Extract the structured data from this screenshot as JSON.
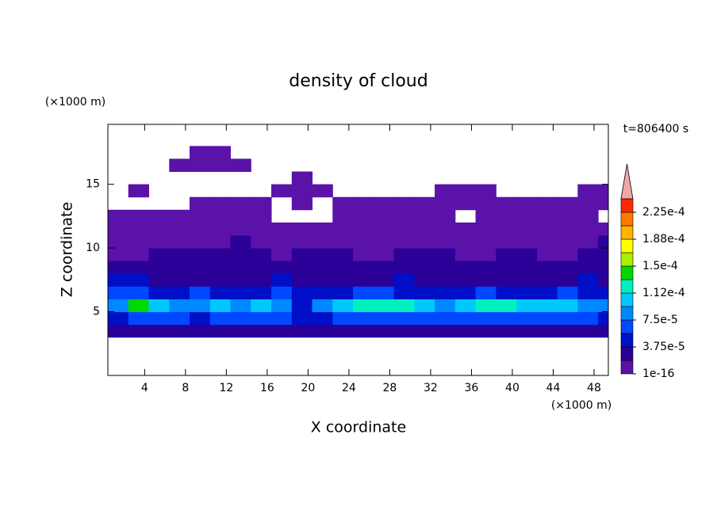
{
  "chart_data": {
    "type": "contour",
    "title": "density of cloud",
    "x_label": "X coordinate",
    "y_label": "Z coordinate",
    "x_unit": "(×1000 m)",
    "y_unit": "(×1000 m)",
    "time_label": "t=806400 s",
    "xlim": [
      0.4,
      49.4
    ],
    "ylim": [
      0,
      19.7
    ],
    "xticks": [
      4,
      8,
      12,
      16,
      20,
      24,
      28,
      32,
      36,
      40,
      44,
      48
    ],
    "yticks": [
      5,
      10,
      15
    ],
    "x": [
      1.4,
      3.4,
      5.4,
      7.4,
      9.4,
      11.4,
      13.4,
      15.4,
      17.4,
      19.4,
      21.4,
      23.4,
      25.4,
      27.4,
      29.4,
      31.4,
      33.4,
      35.4,
      37.4,
      39.4,
      41.4,
      43.4,
      45.4,
      47.4,
      49.4
    ],
    "y": [
      3.5,
      4.5,
      5.5,
      6.5,
      7.5,
      8.5,
      9.5,
      10.5,
      11.5,
      12.5,
      13.5,
      14.5,
      15.5,
      16.5,
      17.5
    ],
    "z": [
      [
        2.8e-05,
        2.8e-05,
        2.8e-05,
        2.8e-05,
        2.8e-05,
        2.8e-05,
        2.8e-05,
        2.8e-05,
        2.8e-05,
        2.8e-05,
        2.8e-05,
        2.8e-05,
        2.8e-05,
        2.8e-05,
        2.8e-05,
        2.8e-05,
        2.8e-05,
        2.8e-05,
        2.8e-05,
        2.8e-05,
        2.8e-05,
        2.8e-05,
        2.8e-05,
        2.8e-05,
        2.8e-05
      ],
      [
        4.5e-05,
        6.5e-05,
        6.5e-05,
        6.5e-05,
        4.5e-05,
        6.5e-05,
        6.5e-05,
        6.5e-05,
        6.5e-05,
        4.5e-05,
        4.5e-05,
        6.5e-05,
        6.5e-05,
        6.5e-05,
        6.5e-05,
        6.5e-05,
        6.5e-05,
        6.5e-05,
        6.5e-05,
        6.5e-05,
        6.5e-05,
        6.5e-05,
        6.5e-05,
        6.5e-05,
        4.5e-05
      ],
      [
        8.5e-05,
        0.00014,
        0.000105,
        8.5e-05,
        8.5e-05,
        0.000105,
        8.5e-05,
        0.000105,
        8.5e-05,
        4.5e-05,
        8.5e-05,
        0.000105,
        0.00012,
        0.00012,
        0.00012,
        0.000105,
        8.5e-05,
        0.000105,
        0.00012,
        0.00012,
        0.000105,
        0.000105,
        0.000105,
        8.5e-05,
        8.5e-05
      ],
      [
        6.5e-05,
        6.5e-05,
        4.5e-05,
        4.5e-05,
        6.5e-05,
        4.5e-05,
        4.5e-05,
        4.5e-05,
        6.5e-05,
        4.5e-05,
        4.5e-05,
        4.5e-05,
        6.5e-05,
        6.5e-05,
        4.5e-05,
        4.5e-05,
        4.5e-05,
        4.5e-05,
        6.5e-05,
        4.5e-05,
        4.5e-05,
        4.5e-05,
        6.5e-05,
        4.5e-05,
        4.5e-05
      ],
      [
        4.5e-05,
        4.5e-05,
        2.8e-05,
        2.8e-05,
        2.8e-05,
        2.8e-05,
        2.8e-05,
        2.8e-05,
        4.5e-05,
        2.8e-05,
        2.8e-05,
        2.8e-05,
        2.8e-05,
        2.8e-05,
        4.5e-05,
        2.8e-05,
        2.8e-05,
        2.8e-05,
        2.8e-05,
        2.8e-05,
        2.8e-05,
        2.8e-05,
        2.8e-05,
        4.5e-05,
        2.8e-05
      ],
      [
        2.8e-05,
        2.8e-05,
        2.8e-05,
        2.8e-05,
        2.8e-05,
        2.8e-05,
        2.8e-05,
        2.8e-05,
        2.8e-05,
        2.8e-05,
        2.8e-05,
        2.8e-05,
        2.8e-05,
        2.8e-05,
        2.8e-05,
        2.8e-05,
        2.8e-05,
        2.8e-05,
        2.8e-05,
        2.8e-05,
        2.8e-05,
        2.8e-05,
        2.8e-05,
        2.8e-05,
        2.8e-05
      ],
      [
        1e-05,
        1e-05,
        2.8e-05,
        2.8e-05,
        2.8e-05,
        2.8e-05,
        2.8e-05,
        2.8e-05,
        1e-05,
        2.8e-05,
        2.8e-05,
        2.8e-05,
        1e-05,
        1e-05,
        2.8e-05,
        2.8e-05,
        2.8e-05,
        1e-05,
        1e-05,
        2.8e-05,
        2.8e-05,
        1e-05,
        1e-05,
        2.8e-05,
        2.8e-05
      ],
      [
        1e-05,
        1e-05,
        1e-05,
        1e-05,
        1e-05,
        1e-05,
        2.8e-05,
        1e-05,
        1e-05,
        1e-05,
        1e-05,
        1e-05,
        1e-05,
        1e-05,
        1e-05,
        1e-05,
        1e-05,
        1e-05,
        1e-05,
        1e-05,
        1e-05,
        1e-05,
        1e-05,
        1e-05,
        2.8e-05
      ],
      [
        1e-05,
        1e-05,
        1e-05,
        1e-05,
        1e-05,
        1e-05,
        1e-05,
        1e-05,
        1e-05,
        1e-05,
        1e-05,
        1e-05,
        1e-05,
        1e-05,
        1e-05,
        1e-05,
        1e-05,
        1e-05,
        1e-05,
        1e-05,
        1e-05,
        1e-05,
        1e-05,
        1e-05,
        1e-05
      ],
      [
        1e-05,
        1e-05,
        1e-05,
        1e-05,
        1e-05,
        1e-05,
        1e-05,
        1e-05,
        0,
        0,
        0,
        1e-05,
        1e-05,
        1e-05,
        1e-05,
        1e-05,
        1e-05,
        0,
        1e-05,
        1e-05,
        1e-05,
        1e-05,
        1e-05,
        1e-05,
        0
      ],
      [
        0,
        0,
        0,
        0,
        1e-05,
        1e-05,
        1e-05,
        1e-05,
        0,
        1e-05,
        0,
        1e-05,
        1e-05,
        1e-05,
        1e-05,
        1e-05,
        1e-05,
        1e-05,
        1e-05,
        1e-05,
        1e-05,
        1e-05,
        1e-05,
        1e-05,
        1e-05
      ],
      [
        0,
        1e-05,
        0,
        0,
        0,
        0,
        0,
        0,
        1e-05,
        1e-05,
        1e-05,
        0,
        0,
        0,
        0,
        0,
        1e-05,
        1e-05,
        1e-05,
        0,
        0,
        0,
        0,
        1e-05,
        1e-05
      ],
      [
        0,
        0,
        0,
        0,
        0,
        0,
        0,
        0,
        0,
        1e-05,
        0,
        0,
        0,
        0,
        0,
        0,
        0,
        0,
        0,
        0,
        0,
        0,
        0,
        0,
        0
      ],
      [
        0,
        0,
        0,
        1e-05,
        1e-05,
        1e-05,
        1e-05,
        0,
        0,
        0,
        0,
        0,
        0,
        0,
        0,
        0,
        0,
        0,
        0,
        0,
        0,
        0,
        0,
        0,
        0
      ],
      [
        0,
        0,
        0,
        0,
        1e-05,
        1e-05,
        0,
        0,
        0,
        0,
        0,
        0,
        0,
        0,
        0,
        0,
        0,
        0,
        0,
        0,
        0,
        0,
        0,
        0,
        0
      ]
    ],
    "levels": [
      1e-16,
      1.875e-05,
      3.75e-05,
      5.625e-05,
      7.5e-05,
      9.375e-05,
      0.0001125,
      0.00013125,
      0.00015,
      0.00016875,
      0.0001875,
      0.00020625,
      0.000225,
      0.00024375
    ],
    "colors": [
      "#5a12a8",
      "#2a0098",
      "#0010c8",
      "#0048ff",
      "#0088ff",
      "#00c8ff",
      "#00f0c0",
      "#00d800",
      "#a8f000",
      "#ffff00",
      "#ffb400",
      "#ff7800",
      "#ff2800"
    ],
    "extend_color": "#f4a6a6",
    "colorbar_ticks": [
      {
        "value": 1e-16,
        "label": "1e-16"
      },
      {
        "value": 3.75e-05,
        "label": "3.75e-5"
      },
      {
        "value": 7.5e-05,
        "label": "7.5e-5"
      },
      {
        "value": 0.0001125,
        "label": "1.12e-4"
      },
      {
        "value": 0.00015,
        "label": "1.5e-4"
      },
      {
        "value": 0.0001875,
        "label": "1.88e-4"
      },
      {
        "value": 0.000225,
        "label": "2.25e-4"
      }
    ]
  }
}
